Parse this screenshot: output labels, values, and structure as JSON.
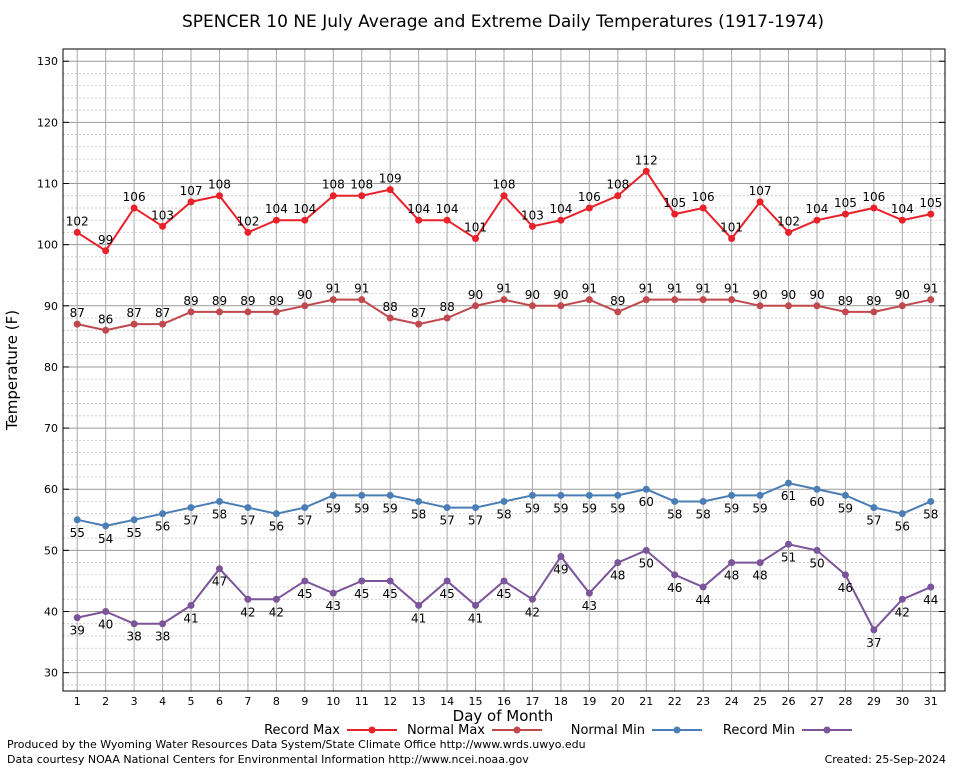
{
  "chart_data": {
    "type": "line",
    "title": "SPENCER 10 NE July Average and Extreme Daily Temperatures (1917-1974)",
    "xlabel": "Day of Month",
    "ylabel": "Temperature (F)",
    "x": [
      1,
      2,
      3,
      4,
      5,
      6,
      7,
      8,
      9,
      10,
      11,
      12,
      13,
      14,
      15,
      16,
      17,
      18,
      19,
      20,
      21,
      22,
      23,
      24,
      25,
      26,
      27,
      28,
      29,
      30,
      31
    ],
    "ylim": [
      27,
      132
    ],
    "yticks": [
      30,
      40,
      50,
      60,
      70,
      80,
      90,
      100,
      110,
      120,
      130
    ],
    "grid": true,
    "legend_position": "bottom",
    "series": [
      {
        "name": "Record Max",
        "color": "#e8212b",
        "values": [
          102,
          99,
          106,
          103,
          107,
          108,
          102,
          104,
          104,
          108,
          108,
          109,
          104,
          104,
          101,
          108,
          103,
          104,
          106,
          108,
          112,
          105,
          106,
          101,
          107,
          102,
          104,
          105,
          106,
          104,
          105
        ],
        "label_position": "above"
      },
      {
        "name": "Normal Max",
        "color": "#c0494e",
        "values": [
          87,
          86,
          87,
          87,
          89,
          89,
          89,
          89,
          90,
          91,
          91,
          88,
          87,
          88,
          90,
          91,
          90,
          90,
          91,
          89,
          91,
          91,
          91,
          91,
          90,
          90,
          90,
          89,
          89,
          90,
          91
        ],
        "label_position": "above"
      },
      {
        "name": "Normal Min",
        "color": "#4a7eb5",
        "values": [
          55,
          54,
          55,
          56,
          57,
          58,
          57,
          56,
          57,
          59,
          59,
          59,
          58,
          57,
          57,
          58,
          59,
          59,
          59,
          59,
          60,
          58,
          58,
          59,
          59,
          61,
          60,
          59,
          57,
          56,
          58
        ],
        "label_position": "below"
      },
      {
        "name": "Record Min",
        "color": "#7b5499",
        "values": [
          39,
          40,
          38,
          38,
          41,
          47,
          42,
          42,
          45,
          43,
          45,
          45,
          41,
          45,
          41,
          45,
          42,
          49,
          43,
          48,
          50,
          46,
          44,
          48,
          48,
          51,
          50,
          46,
          37,
          42,
          44
        ],
        "label_position": "below"
      }
    ]
  },
  "footer": {
    "credit_line1": "Produced by the Wyoming Water Resources Data System/State Climate Office http://www.wrds.uwyo.edu",
    "credit_line2": "Data courtesy NOAA National Centers for Environmental Information http://www.ncei.noaa.gov",
    "created": "Created:  25-Sep-2024"
  }
}
